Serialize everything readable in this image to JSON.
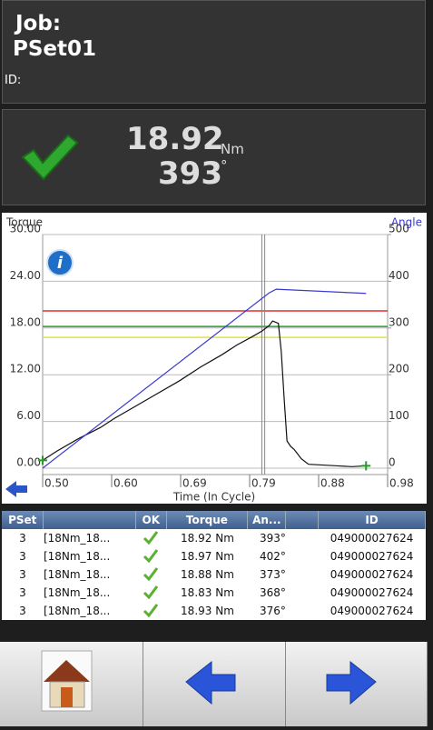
{
  "header": {
    "job_label": "Job:",
    "job_name": "PSet01",
    "id_label": "ID:"
  },
  "result": {
    "torque": "18.92",
    "torque_unit": "Nm",
    "angle": "393",
    "angle_unit": "°"
  },
  "chart_data": {
    "type": "line",
    "y_label": "Torque",
    "y2_label": "Angle",
    "x_label": "Time (In Cycle)",
    "xlim": [
      0.5,
      0.98
    ],
    "xticks": [
      {
        "value": 0.5,
        "label": "0.50"
      },
      {
        "value": 0.596,
        "label": "0.60"
      },
      {
        "value": 0.692,
        "label": "0.69"
      },
      {
        "value": 0.788,
        "label": "0.79"
      },
      {
        "value": 0.884,
        "label": "0.88"
      },
      {
        "value": 0.98,
        "label": "0.98"
      }
    ],
    "ylim": [
      0,
      30
    ],
    "yticks": [
      {
        "value": 0,
        "label": "0.00"
      },
      {
        "value": 6,
        "label": "6.00"
      },
      {
        "value": 12,
        "label": "12.00"
      },
      {
        "value": 18,
        "label": "18.00"
      },
      {
        "value": 24,
        "label": "24.00"
      },
      {
        "value": 30,
        "label": "30.00"
      }
    ],
    "y2lim": [
      0,
      500
    ],
    "y2ticks": [
      0,
      100,
      200,
      300,
      400,
      500
    ],
    "limits": [
      {
        "value": 20.2,
        "color": "#e03030"
      },
      {
        "value": 18.2,
        "color": "#2a9a2a"
      },
      {
        "value": 16.8,
        "color": "#e8e040"
      }
    ],
    "vlines": [
      0.805,
      0.809
    ],
    "series": [
      {
        "name": "Torque",
        "color": "#111111",
        "x": [
          0.5,
          0.52,
          0.55,
          0.58,
          0.6,
          0.63,
          0.66,
          0.69,
          0.72,
          0.75,
          0.77,
          0.79,
          0.805,
          0.815,
          0.82,
          0.828,
          0.832,
          0.836,
          0.84,
          0.845,
          0.85,
          0.86,
          0.87,
          0.89,
          0.91,
          0.93,
          0.95
        ],
        "values": [
          1.0,
          2.2,
          3.8,
          5.2,
          6.4,
          8.0,
          9.6,
          11.2,
          13.0,
          14.6,
          15.8,
          16.8,
          17.6,
          18.3,
          18.9,
          18.6,
          15.0,
          9.0,
          3.5,
          2.8,
          2.4,
          1.2,
          0.5,
          0.4,
          0.3,
          0.2,
          0.3
        ]
      },
      {
        "name": "Angle",
        "color": "#3a3ad0",
        "axis": "y2",
        "x": [
          0.5,
          0.815,
          0.825,
          0.95
        ],
        "values": [
          0,
          375,
          383,
          374
        ]
      }
    ]
  },
  "table": {
    "columns": [
      "PSet",
      "OK",
      "Torque",
      "An...",
      "ID"
    ],
    "rows": [
      [
        "3",
        "[18Nm_18...",
        "18.92 Nm",
        "393°",
        "049000027624"
      ],
      [
        "3",
        "[18Nm_18...",
        "18.97 Nm",
        "402°",
        "049000027624"
      ],
      [
        "3",
        "[18Nm_18...",
        "18.88 Nm",
        "373°",
        "049000027624"
      ],
      [
        "3",
        "[18Nm_18...",
        "18.83 Nm",
        "368°",
        "049000027624"
      ],
      [
        "3",
        "[18Nm_18...",
        "18.93 Nm",
        "376°",
        "049000027624"
      ]
    ]
  }
}
